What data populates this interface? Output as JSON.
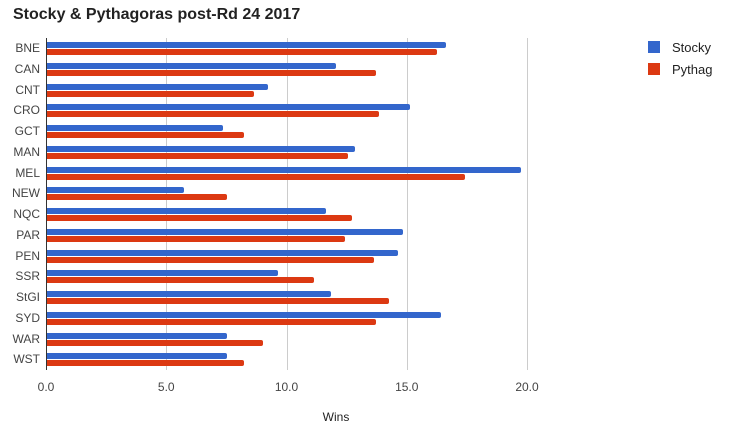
{
  "chart_data": {
    "type": "bar",
    "orientation": "horizontal",
    "title": "Stocky & Pythagoras post-Rd 24 2017",
    "xlabel": "Wins",
    "ylabel": "",
    "xlim": [
      0,
      22
    ],
    "x_ticks": [
      "0.0",
      "5.0",
      "10.0",
      "15.0",
      "20.0"
    ],
    "grid": true,
    "legend_position": "right",
    "categories": [
      "BNE",
      "CAN",
      "CNT",
      "CRO",
      "GCT",
      "MAN",
      "MEL",
      "NEW",
      "NQC",
      "PAR",
      "PEN",
      "SSR",
      "StGI",
      "SYD",
      "WAR",
      "WST"
    ],
    "series": [
      {
        "name": "Stocky",
        "color": "#3366cc",
        "values": [
          16.6,
          12.0,
          9.2,
          15.1,
          7.3,
          12.8,
          19.7,
          5.7,
          11.6,
          14.8,
          14.6,
          9.6,
          11.8,
          16.4,
          7.5,
          7.5
        ]
      },
      {
        "name": "Pythag",
        "color": "#dc3912",
        "values": [
          16.2,
          13.7,
          8.6,
          13.8,
          8.2,
          12.5,
          17.4,
          7.5,
          12.7,
          12.4,
          13.6,
          11.1,
          14.2,
          13.7,
          9.0,
          8.2
        ]
      }
    ]
  },
  "title": "Stocky & Pythagoras post-Rd 24 2017",
  "xlabel": "Wins",
  "legend": [
    {
      "label": "Stocky",
      "color": "#3366cc"
    },
    {
      "label": "Pythag",
      "color": "#dc3912"
    }
  ]
}
